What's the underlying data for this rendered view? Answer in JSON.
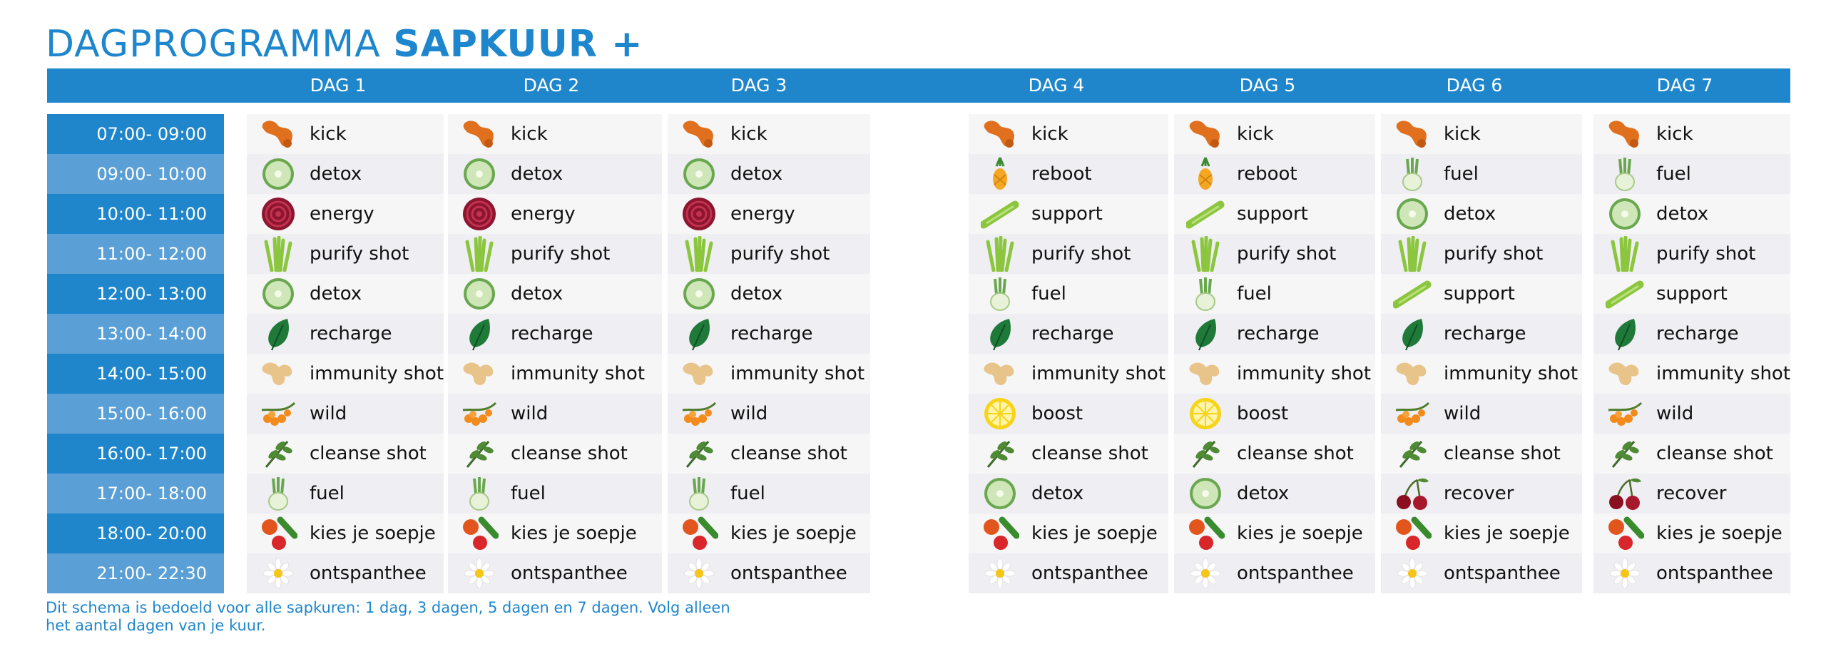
{
  "title": {
    "part1": "DAGPROGRAMMA",
    "part2": "SAPKUUR +"
  },
  "days": [
    "DAG 1",
    "DAG 2",
    "DAG 3",
    "DAG 4",
    "DAG 5",
    "DAG 6",
    "DAG 7"
  ],
  "times": [
    "07:00- 09:00",
    "09:00- 10:00",
    "10:00- 11:00",
    "11:00- 12:00",
    "12:00- 13:00",
    "13:00- 14:00",
    "14:00- 15:00",
    "15:00- 16:00",
    "16:00- 17:00",
    "17:00- 18:00",
    "18:00- 20:00",
    "21:00- 22:30"
  ],
  "schedule": [
    [
      {
        "icon": "ginger-root-icon",
        "label": "kick"
      },
      {
        "icon": "cucumber-icon",
        "label": "detox"
      },
      {
        "icon": "beetroot-icon",
        "label": "energy"
      },
      {
        "icon": "wheatgrass-icon",
        "label": "purify shot"
      },
      {
        "icon": "cucumber-icon",
        "label": "detox"
      },
      {
        "icon": "spinach-leaf-icon",
        "label": "recharge"
      },
      {
        "icon": "ginger-icon",
        "label": "immunity shot"
      },
      {
        "icon": "sea-buckthorn-icon",
        "label": "wild"
      },
      {
        "icon": "herb-sprig-icon",
        "label": "cleanse shot"
      },
      {
        "icon": "fennel-icon",
        "label": "fuel"
      },
      {
        "icon": "tomato-cucumber-icon",
        "label": "kies je soepje"
      },
      {
        "icon": "chamomile-icon",
        "label": "ontspanthee"
      }
    ],
    [
      {
        "icon": "ginger-root-icon",
        "label": "kick"
      },
      {
        "icon": "cucumber-icon",
        "label": "detox"
      },
      {
        "icon": "beetroot-icon",
        "label": "energy"
      },
      {
        "icon": "wheatgrass-icon",
        "label": "purify shot"
      },
      {
        "icon": "cucumber-icon",
        "label": "detox"
      },
      {
        "icon": "spinach-leaf-icon",
        "label": "recharge"
      },
      {
        "icon": "ginger-icon",
        "label": "immunity shot"
      },
      {
        "icon": "sea-buckthorn-icon",
        "label": "wild"
      },
      {
        "icon": "herb-sprig-icon",
        "label": "cleanse shot"
      },
      {
        "icon": "fennel-icon",
        "label": "fuel"
      },
      {
        "icon": "tomato-cucumber-icon",
        "label": "kies je soepje"
      },
      {
        "icon": "chamomile-icon",
        "label": "ontspanthee"
      }
    ],
    [
      {
        "icon": "ginger-root-icon",
        "label": "kick"
      },
      {
        "icon": "cucumber-icon",
        "label": "detox"
      },
      {
        "icon": "beetroot-icon",
        "label": "energy"
      },
      {
        "icon": "wheatgrass-icon",
        "label": "purify shot"
      },
      {
        "icon": "cucumber-icon",
        "label": "detox"
      },
      {
        "icon": "spinach-leaf-icon",
        "label": "recharge"
      },
      {
        "icon": "ginger-icon",
        "label": "immunity shot"
      },
      {
        "icon": "sea-buckthorn-icon",
        "label": "wild"
      },
      {
        "icon": "herb-sprig-icon",
        "label": "cleanse shot"
      },
      {
        "icon": "fennel-icon",
        "label": "fuel"
      },
      {
        "icon": "tomato-cucumber-icon",
        "label": "kies je soepje"
      },
      {
        "icon": "chamomile-icon",
        "label": "ontspanthee"
      }
    ],
    [
      {
        "icon": "ginger-root-icon",
        "label": "kick"
      },
      {
        "icon": "pineapple-icon",
        "label": "reboot"
      },
      {
        "icon": "celery-icon",
        "label": "support"
      },
      {
        "icon": "wheatgrass-icon",
        "label": "purify shot"
      },
      {
        "icon": "fennel-icon",
        "label": "fuel"
      },
      {
        "icon": "spinach-leaf-icon",
        "label": "recharge"
      },
      {
        "icon": "ginger-icon",
        "label": "immunity shot"
      },
      {
        "icon": "lemon-icon",
        "label": "boost"
      },
      {
        "icon": "herb-sprig-icon",
        "label": "cleanse shot"
      },
      {
        "icon": "cucumber-icon",
        "label": "detox"
      },
      {
        "icon": "tomato-cucumber-icon",
        "label": "kies je soepje"
      },
      {
        "icon": "chamomile-icon",
        "label": "ontspanthee"
      }
    ],
    [
      {
        "icon": "ginger-root-icon",
        "label": "kick"
      },
      {
        "icon": "pineapple-icon",
        "label": "reboot"
      },
      {
        "icon": "celery-icon",
        "label": "support"
      },
      {
        "icon": "wheatgrass-icon",
        "label": "purify shot"
      },
      {
        "icon": "fennel-icon",
        "label": "fuel"
      },
      {
        "icon": "spinach-leaf-icon",
        "label": "recharge"
      },
      {
        "icon": "ginger-icon",
        "label": "immunity shot"
      },
      {
        "icon": "lemon-icon",
        "label": "boost"
      },
      {
        "icon": "herb-sprig-icon",
        "label": "cleanse shot"
      },
      {
        "icon": "cucumber-icon",
        "label": "detox"
      },
      {
        "icon": "tomato-cucumber-icon",
        "label": "kies je soepje"
      },
      {
        "icon": "chamomile-icon",
        "label": "ontspanthee"
      }
    ],
    [
      {
        "icon": "ginger-root-icon",
        "label": "kick"
      },
      {
        "icon": "fennel-icon",
        "label": "fuel"
      },
      {
        "icon": "cucumber-icon",
        "label": "detox"
      },
      {
        "icon": "wheatgrass-icon",
        "label": "purify shot"
      },
      {
        "icon": "celery-icon",
        "label": "support"
      },
      {
        "icon": "spinach-leaf-icon",
        "label": "recharge"
      },
      {
        "icon": "ginger-icon",
        "label": "immunity shot"
      },
      {
        "icon": "sea-buckthorn-icon",
        "label": "wild"
      },
      {
        "icon": "herb-sprig-icon",
        "label": "cleanse shot"
      },
      {
        "icon": "cherries-icon",
        "label": "recover"
      },
      {
        "icon": "tomato-cucumber-icon",
        "label": "kies je soepje"
      },
      {
        "icon": "chamomile-icon",
        "label": "ontspanthee"
      }
    ],
    [
      {
        "icon": "ginger-root-icon",
        "label": "kick"
      },
      {
        "icon": "fennel-icon",
        "label": "fuel"
      },
      {
        "icon": "cucumber-icon",
        "label": "detox"
      },
      {
        "icon": "wheatgrass-icon",
        "label": "purify shot"
      },
      {
        "icon": "celery-icon",
        "label": "support"
      },
      {
        "icon": "spinach-leaf-icon",
        "label": "recharge"
      },
      {
        "icon": "ginger-icon",
        "label": "immunity shot"
      },
      {
        "icon": "sea-buckthorn-icon",
        "label": "wild"
      },
      {
        "icon": "herb-sprig-icon",
        "label": "cleanse shot"
      },
      {
        "icon": "cherries-icon",
        "label": "recover"
      },
      {
        "icon": "tomato-cucumber-icon",
        "label": "kies je soepje"
      },
      {
        "icon": "chamomile-icon",
        "label": "ontspanthee"
      }
    ]
  ],
  "footnote": "Dit schema is bedoeld voor alle sapkuren: 1 dag, 3 dagen, 5 dagen en 7 dagen. Volg alleen het aantal dagen van je kuur.",
  "colors": {
    "brand_blue": "#1f86cc",
    "time_alt_blue": "#5a9fd6",
    "row_light": "#f6f6f7",
    "row_dark": "#eeeef3"
  }
}
